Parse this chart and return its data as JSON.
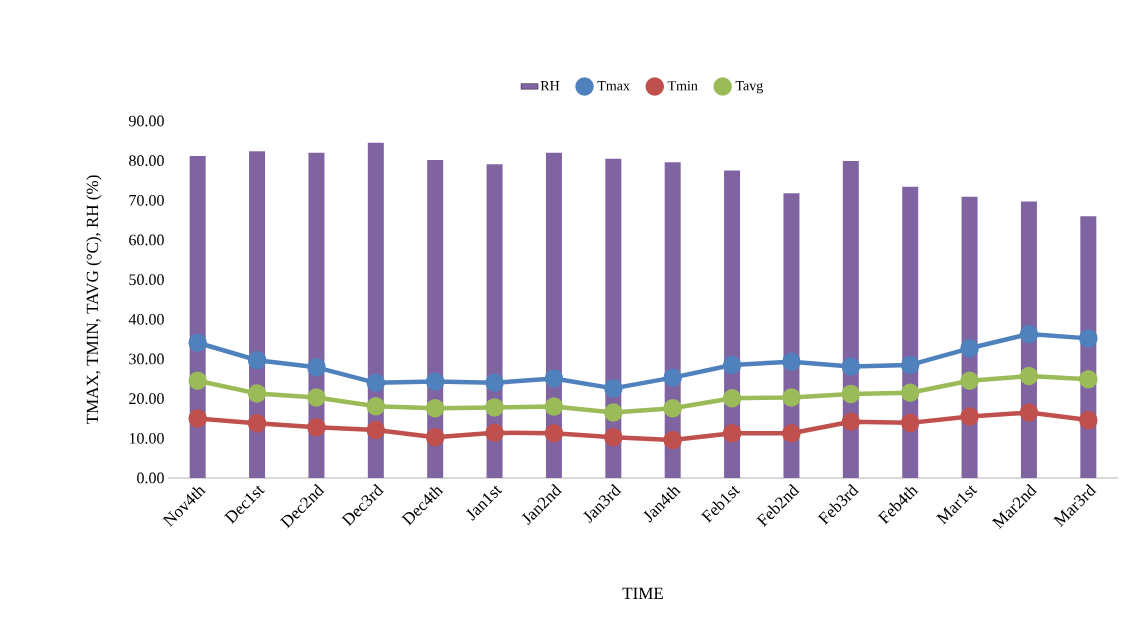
{
  "chart_data": {
    "type": "bar",
    "xlabel": "TIME",
    "ylabel": "TMAX, TMIN, TAVG (°C), RH (%)",
    "categories": [
      "Nov4th",
      "Dec1st",
      "Dec2nd",
      "Dec3rd",
      "Dec4th",
      "Jan1st",
      "Jan2nd",
      "Jan3rd",
      "Jan4th",
      "Feb1st",
      "Feb2nd",
      "Feb3rd",
      "Feb4th",
      "Mar1st",
      "Mar2nd",
      "Mar3rd"
    ],
    "series": [
      {
        "name": "RH",
        "color": "#8064a2",
        "values": [
          81.2,
          82.4,
          82.0,
          84.5,
          80.2,
          79.1,
          82.0,
          80.5,
          79.6,
          77.5,
          71.8,
          79.9,
          73.4,
          70.9,
          69.7,
          66.0
        ]
      },
      {
        "name": "Tmax",
        "type": "line",
        "color": "#4f81bd",
        "values": [
          34.1,
          29.7,
          27.9,
          24.0,
          24.3,
          24.0,
          25.1,
          22.6,
          25.3,
          28.5,
          29.3,
          28.1,
          28.5,
          32.7,
          36.3,
          35.2
        ]
      },
      {
        "name": "Tmin",
        "type": "line",
        "color": "#c0504d",
        "values": [
          15.0,
          13.8,
          12.8,
          12.1,
          10.3,
          11.4,
          11.3,
          10.3,
          9.6,
          11.3,
          11.3,
          14.2,
          13.9,
          15.5,
          16.5,
          14.6
        ]
      },
      {
        "name": "Tavg",
        "type": "line",
        "color": "#9bbb59",
        "values": [
          24.5,
          21.3,
          20.3,
          18.1,
          17.6,
          17.8,
          18.0,
          16.5,
          17.6,
          20.1,
          20.3,
          21.2,
          21.5,
          24.5,
          25.7,
          24.9
        ]
      }
    ],
    "ylim": [
      0,
      90
    ],
    "yticks": [
      {
        "value": 0,
        "label": "0.00"
      },
      {
        "value": 10,
        "label": "10.00"
      },
      {
        "value": 20,
        "label": "20.00"
      },
      {
        "value": 30,
        "label": "30.00"
      },
      {
        "value": 40,
        "label": "40.00"
      },
      {
        "value": 50,
        "label": "50.00"
      },
      {
        "value": 60,
        "label": "60.00"
      },
      {
        "value": 70,
        "label": "70.00"
      },
      {
        "value": 80,
        "label": "80.00"
      },
      {
        "value": 90,
        "label": "90.00"
      }
    ],
    "legend": "top",
    "marker": "circle"
  }
}
